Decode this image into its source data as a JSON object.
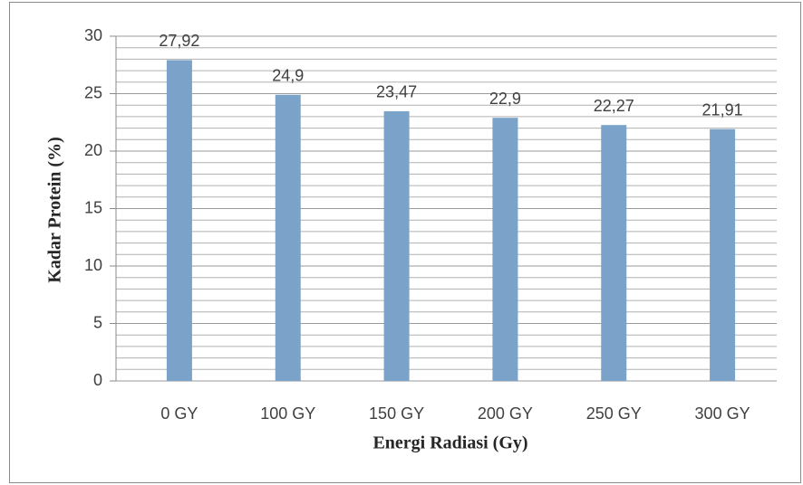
{
  "chart_data": {
    "type": "bar",
    "x_label": "Energi Radiasi (Gy)",
    "y_label": "Kadar Protein (%)",
    "categories": [
      "0 GY",
      "100 GY",
      "150 GY",
      "200 GY",
      "250 GY",
      "300 GY"
    ],
    "values": [
      27.92,
      24.9,
      23.47,
      22.9,
      22.27,
      21.91
    ],
    "value_labels": [
      "27,92",
      "24,9",
      "23,47",
      "22,9",
      "22,27",
      "21,91"
    ],
    "color": "#7ba2c8",
    "ylim": [
      0,
      30
    ],
    "yticks": [
      0,
      5,
      10,
      15,
      20,
      25,
      30
    ],
    "minor_yticks": [
      1,
      2,
      3,
      4,
      6,
      7,
      8,
      9,
      11,
      12,
      13,
      14,
      16,
      17,
      18,
      19,
      21,
      22,
      23,
      24,
      26,
      27,
      28,
      29
    ],
    "grid": true
  }
}
